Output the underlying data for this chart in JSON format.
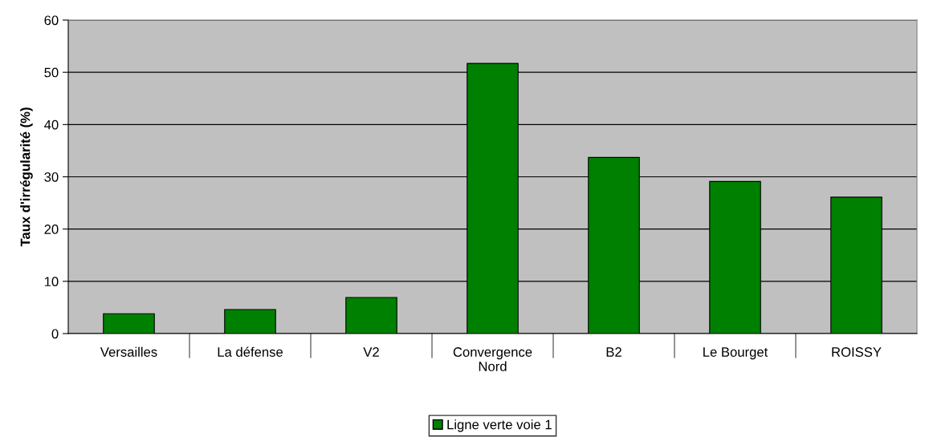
{
  "chart_data": {
    "type": "bar",
    "ylabel": "Taux d'irrégularité (%)",
    "categories": [
      "Versailles",
      "La défense",
      "V2",
      "Convergence\nNord",
      "B2",
      "Le Bourget",
      "ROISSY"
    ],
    "series": [
      {
        "name": "Ligne verte voie 1",
        "color": "#008000",
        "values": [
          3.8,
          4.6,
          6.9,
          51.7,
          33.7,
          29.1,
          26.1
        ]
      }
    ],
    "ylim": [
      0,
      60
    ],
    "yticks": [
      0,
      10,
      20,
      30,
      40,
      50,
      60
    ],
    "grid": "y",
    "legend": "bottom"
  }
}
